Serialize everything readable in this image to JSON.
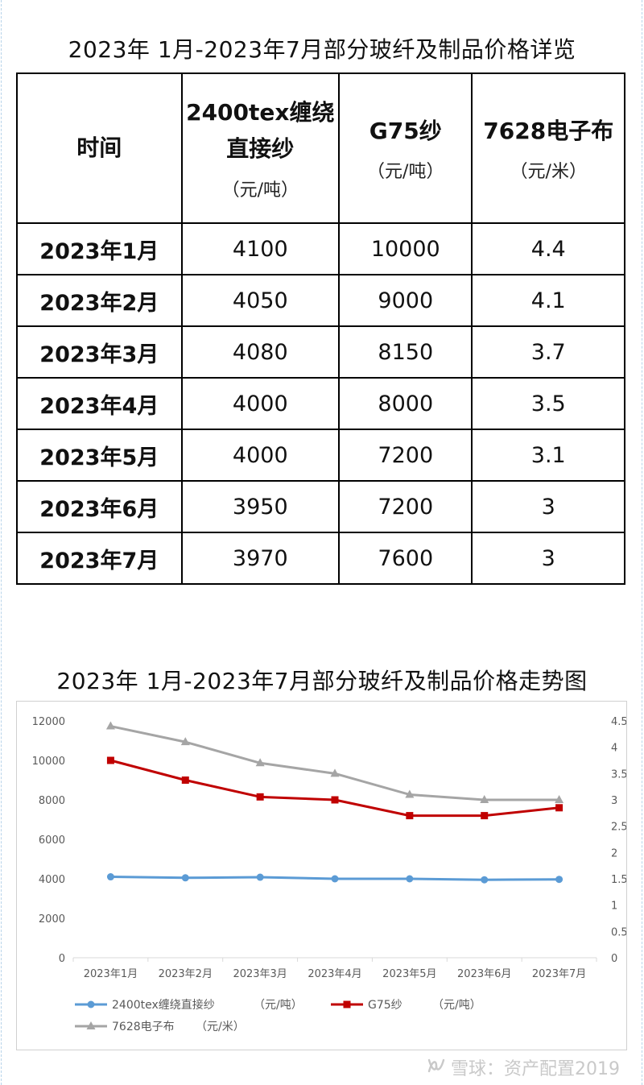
{
  "table": {
    "title": "2023年 1月-2023年7月部分玻纤及制品价格详览",
    "headers": [
      {
        "main": "时间",
        "unit": ""
      },
      {
        "main": "2400tex缠绕直接纱",
        "unit": "（元/吨）"
      },
      {
        "main": "G75纱",
        "unit": "（元/吨）"
      },
      {
        "main": "7628电子布",
        "unit": "（元/米）"
      }
    ],
    "rows": [
      [
        "2023年1月",
        "4100",
        "10000",
        "4.4"
      ],
      [
        "2023年2月",
        "4050",
        "9000",
        "4.1"
      ],
      [
        "2023年3月",
        "4080",
        "8150",
        "3.7"
      ],
      [
        "2023年4月",
        "4000",
        "8000",
        "3.5"
      ],
      [
        "2023年5月",
        "4000",
        "7200",
        "3.1"
      ],
      [
        "2023年6月",
        "3950",
        "7200",
        "3"
      ],
      [
        "2023年7月",
        "3970",
        "7600",
        "3"
      ]
    ]
  },
  "chart_data": {
    "type": "line",
    "title": "2023年 1月-2023年7月部分玻纤及制品价格走势图",
    "categories": [
      "2023年1月",
      "2023年2月",
      "2023年3月",
      "2023年4月",
      "2023年5月",
      "2023年6月",
      "2023年7月"
    ],
    "y_left": {
      "min": 0,
      "max": 12000,
      "ticks": [
        "0",
        "2000",
        "4000",
        "6000",
        "8000",
        "10000",
        "12000"
      ]
    },
    "y_right": {
      "min": 0,
      "max": 4.5,
      "ticks": [
        "0",
        "0.5",
        "1",
        "1.5",
        "2",
        "2.5",
        "3",
        "3.5",
        "4",
        "4.5"
      ]
    },
    "grid": false,
    "legend_position": "bottom",
    "series": [
      {
        "name": "2400tex缠绕直接纱",
        "unit": "（元/吨）",
        "axis": "left",
        "color": "#5B9BD5",
        "marker": "circle",
        "values": [
          4100,
          4050,
          4080,
          4000,
          4000,
          3950,
          3970
        ]
      },
      {
        "name": "G75纱",
        "unit": "（元/吨）",
        "axis": "left",
        "color": "#C00000",
        "marker": "square",
        "values": [
          10000,
          9000,
          8150,
          8000,
          7200,
          7200,
          7600
        ]
      },
      {
        "name": "7628电子布",
        "unit": "（元/米）",
        "axis": "right",
        "color": "#A5A5A5",
        "marker": "triangle",
        "values": [
          4.4,
          4.1,
          3.7,
          3.5,
          3.1,
          3,
          3
        ]
      }
    ]
  },
  "watermark": {
    "icon": "xueqiu-logo-icon",
    "text": "雪球：资产配置2019"
  }
}
